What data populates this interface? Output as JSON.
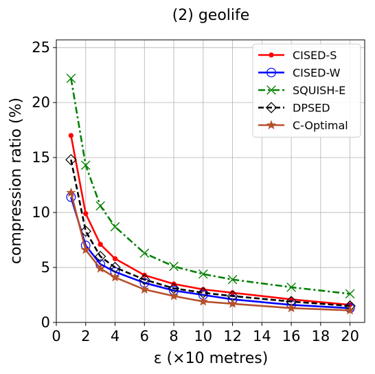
{
  "chart_data": {
    "type": "line",
    "title": "(2) geolife",
    "xlabel": "ε (×10 metres)",
    "ylabel": "compression ratio (%)",
    "xlim": [
      0,
      21
    ],
    "ylim": [
      0,
      25.7
    ],
    "xticks": [
      0,
      2,
      4,
      6,
      8,
      10,
      12,
      14,
      16,
      18,
      20
    ],
    "yticks": [
      0,
      5,
      10,
      15,
      20,
      25
    ],
    "grid": true,
    "legend_position": "top-right",
    "x": [
      1,
      2,
      3,
      4,
      6,
      8,
      10,
      12,
      16,
      20
    ],
    "series": [
      {
        "name": "CISED-S",
        "color": "#ff0000",
        "style": "solid",
        "marker": "dot",
        "values": [
          17.0,
          9.9,
          7.1,
          5.8,
          4.3,
          3.5,
          3.0,
          2.7,
          2.1,
          1.6
        ]
      },
      {
        "name": "CISED-W",
        "color": "#0000ff",
        "style": "solid",
        "marker": "circle",
        "values": [
          11.4,
          7.0,
          5.3,
          4.6,
          3.6,
          2.9,
          2.5,
          2.1,
          1.6,
          1.3
        ]
      },
      {
        "name": "SQUISH-E",
        "color": "#008000",
        "style": "dashdot",
        "marker": "x",
        "values": [
          22.2,
          14.3,
          10.6,
          8.7,
          6.3,
          5.1,
          4.4,
          3.9,
          3.2,
          2.6
        ]
      },
      {
        "name": "DPSED",
        "color": "#000000",
        "style": "dashed",
        "marker": "diamond",
        "values": [
          14.8,
          8.3,
          6.0,
          5.0,
          3.9,
          3.1,
          2.7,
          2.4,
          1.9,
          1.5
        ]
      },
      {
        "name": "C-Optimal",
        "color": "#b5502a",
        "style": "solid",
        "marker": "star",
        "values": [
          11.8,
          6.6,
          4.9,
          4.1,
          3.0,
          2.4,
          1.9,
          1.7,
          1.3,
          1.1
        ]
      }
    ]
  }
}
